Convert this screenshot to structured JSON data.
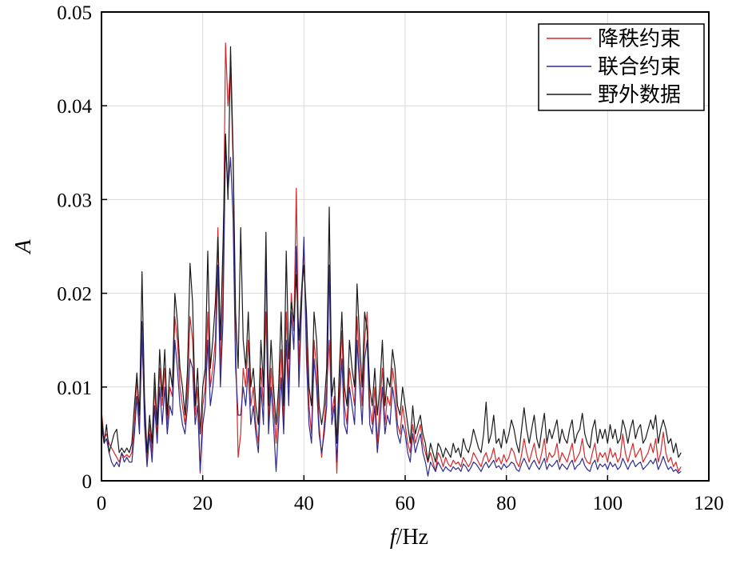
{
  "chart_data": {
    "type": "line",
    "xlabel_italic": "f",
    "xlabel_unit": "/Hz",
    "ylabel": "A",
    "xlim": [
      0,
      120
    ],
    "ylim": [
      0,
      0.05
    ],
    "xticks": [
      0,
      20,
      40,
      60,
      80,
      100,
      120
    ],
    "yticks": [
      0,
      0.01,
      0.02,
      0.03,
      0.04,
      0.05
    ],
    "xtick_labels": [
      "0",
      "20",
      "40",
      "60",
      "80",
      "100",
      "120"
    ],
    "ytick_labels": [
      "0",
      "0.01",
      "0.02",
      "0.03",
      "0.04",
      "0.05"
    ],
    "grid": true,
    "legend_position": "top-right",
    "x_step": 0.5,
    "series": [
      {
        "name": "降秩约束",
        "color": "#d62728",
        "values": [
          0.0075,
          0.0045,
          0.005,
          0.004,
          0.0035,
          0.003,
          0.0025,
          0.002,
          0.003,
          0.0025,
          0.0028,
          0.0025,
          0.003,
          0.006,
          0.011,
          0.006,
          0.015,
          0.008,
          0.002,
          0.006,
          0.003,
          0.01,
          0.005,
          0.012,
          0.008,
          0.012,
          0.006,
          0.01,
          0.009,
          0.0175,
          0.015,
          0.01,
          0.008,
          0.006,
          0.01,
          0.0175,
          0.015,
          0.007,
          0.01,
          0.0008,
          0.008,
          0.01,
          0.018,
          0.01,
          0.012,
          0.015,
          0.027,
          0.012,
          0.02,
          0.0467,
          0.04,
          0.044,
          0.034,
          0.015,
          0.0025,
          0.005,
          0.012,
          0.01,
          0.015,
          0.008,
          0.01,
          0.006,
          0.004,
          0.012,
          0.008,
          0.018,
          0.006,
          0.012,
          0.008,
          0.004,
          0.008,
          0.014,
          0.006,
          0.018,
          0.01,
          0.02,
          0.016,
          0.0312,
          0.012,
          0.02,
          0.025,
          0.015,
          0.008,
          0.005,
          0.015,
          0.012,
          0.006,
          0.0025,
          0.006,
          0.01,
          0.015,
          0.007,
          0.009,
          0.0008,
          0.01,
          0.016,
          0.008,
          0.006,
          0.012,
          0.01,
          0.008,
          0.0175,
          0.012,
          0.008,
          0.015,
          0.018,
          0.008,
          0.006,
          0.01,
          0.004,
          0.008,
          0.012,
          0.006,
          0.009,
          0.008,
          0.012,
          0.01,
          0.006,
          0.005,
          0.008,
          0.006,
          0.004,
          0.003,
          0.006,
          0.004,
          0.005,
          0.006,
          0.004,
          0.003,
          0.002,
          0.003,
          0.002,
          0.001,
          0.003,
          0.0025,
          0.0015,
          0.0025,
          0.0018,
          0.0015,
          0.0022,
          0.0018,
          0.002,
          0.0015,
          0.0025,
          0.002,
          0.0015,
          0.002,
          0.003,
          0.0025,
          0.002,
          0.0015,
          0.0025,
          0.003,
          0.002,
          0.0025,
          0.0035,
          0.002,
          0.0025,
          0.0018,
          0.0028,
          0.002,
          0.0025,
          0.0035,
          0.003,
          0.002,
          0.0015,
          0.0028,
          0.0045,
          0.003,
          0.002,
          0.003,
          0.004,
          0.0025,
          0.0018,
          0.003,
          0.0045,
          0.002,
          0.003,
          0.0025,
          0.0028,
          0.004,
          0.002,
          0.003,
          0.0025,
          0.002,
          0.003,
          0.004,
          0.002,
          0.0025,
          0.003,
          0.0045,
          0.0025,
          0.002,
          0.0018,
          0.003,
          0.004,
          0.002,
          0.003,
          0.0025,
          0.003,
          0.002,
          0.0035,
          0.0025,
          0.003,
          0.002,
          0.0025,
          0.005,
          0.003,
          0.002,
          0.003,
          0.004,
          0.0025,
          0.003,
          0.0035,
          0.002,
          0.0025,
          0.003,
          0.004,
          0.003,
          0.0045,
          0.002,
          0.003,
          0.0052,
          0.003,
          0.002,
          0.0025,
          0.0015,
          0.002,
          0.001,
          0.0015
        ]
      },
      {
        "name": "联合约束",
        "color": "#2e2a8f",
        "values": [
          0.006,
          0.004,
          0.0045,
          0.003,
          0.002,
          0.0015,
          0.002,
          0.0015,
          0.003,
          0.002,
          0.0025,
          0.002,
          0.002,
          0.005,
          0.009,
          0.005,
          0.017,
          0.006,
          0.0015,
          0.005,
          0.002,
          0.008,
          0.004,
          0.01,
          0.006,
          0.01,
          0.005,
          0.008,
          0.007,
          0.015,
          0.012,
          0.008,
          0.006,
          0.005,
          0.008,
          0.013,
          0.012,
          0.006,
          0.008,
          0.001,
          0.006,
          0.008,
          0.015,
          0.008,
          0.01,
          0.013,
          0.023,
          0.01,
          0.017,
          0.036,
          0.031,
          0.0345,
          0.028,
          0.012,
          0.007,
          0.007,
          0.01,
          0.008,
          0.012,
          0.006,
          0.008,
          0.005,
          0.003,
          0.01,
          0.006,
          0.025,
          0.005,
          0.01,
          0.006,
          0.001,
          0.006,
          0.011,
          0.005,
          0.015,
          0.008,
          0.018,
          0.014,
          0.025,
          0.01,
          0.018,
          0.026,
          0.013,
          0.006,
          0.004,
          0.013,
          0.01,
          0.005,
          0.003,
          0.005,
          0.008,
          0.023,
          0.006,
          0.008,
          0.002,
          0.008,
          0.013,
          0.006,
          0.005,
          0.01,
          0.008,
          0.006,
          0.015,
          0.01,
          0.006,
          0.013,
          0.015,
          0.006,
          0.005,
          0.008,
          0.003,
          0.006,
          0.01,
          0.005,
          0.007,
          0.006,
          0.01,
          0.008,
          0.005,
          0.004,
          0.006,
          0.005,
          0.003,
          0.002,
          0.005,
          0.003,
          0.004,
          0.005,
          0.003,
          0.002,
          0.0005,
          0.002,
          0.0015,
          0.001,
          0.002,
          0.0015,
          0.001,
          0.0015,
          0.0012,
          0.001,
          0.0015,
          0.0012,
          0.0014,
          0.001,
          0.0018,
          0.0015,
          0.001,
          0.0014,
          0.002,
          0.0018,
          0.0014,
          0.001,
          0.0016,
          0.002,
          0.0014,
          0.0018,
          0.0022,
          0.0014,
          0.0016,
          0.0012,
          0.0018,
          0.0014,
          0.0016,
          0.002,
          0.0018,
          0.0012,
          0.001,
          0.0018,
          0.0024,
          0.0018,
          0.0012,
          0.0018,
          0.0022,
          0.0016,
          0.0012,
          0.0018,
          0.0024,
          0.0012,
          0.0018,
          0.0015,
          0.0018,
          0.0022,
          0.0012,
          0.0018,
          0.0015,
          0.0012,
          0.0018,
          0.0022,
          0.0012,
          0.0016,
          0.0018,
          0.0024,
          0.0016,
          0.0012,
          0.001,
          0.0018,
          0.0022,
          0.0012,
          0.0018,
          0.0015,
          0.0018,
          0.0012,
          0.002,
          0.0015,
          0.0018,
          0.0012,
          0.0015,
          0.0024,
          0.0018,
          0.0012,
          0.0018,
          0.0022,
          0.0015,
          0.0018,
          0.002,
          0.0012,
          0.0015,
          0.0018,
          0.0022,
          0.0018,
          0.0024,
          0.0012,
          0.0018,
          0.0026,
          0.0018,
          0.0012,
          0.0015,
          0.001,
          0.0012,
          0.0008,
          0.001
        ]
      },
      {
        "name": "野外数据",
        "color": "#1a1a1a",
        "values": [
          0.007,
          0.004,
          0.006,
          0.003,
          0.004,
          0.005,
          0.0055,
          0.003,
          0.0035,
          0.003,
          0.0035,
          0.003,
          0.004,
          0.008,
          0.0115,
          0.007,
          0.0223,
          0.009,
          0.003,
          0.007,
          0.004,
          0.0115,
          0.006,
          0.014,
          0.009,
          0.014,
          0.007,
          0.012,
          0.01,
          0.02,
          0.017,
          0.012,
          0.01,
          0.007,
          0.012,
          0.0232,
          0.019,
          0.008,
          0.012,
          0.005,
          0.01,
          0.012,
          0.0245,
          0.012,
          0.015,
          0.019,
          0.026,
          0.015,
          0.025,
          0.037,
          0.03,
          0.0463,
          0.035,
          0.018,
          0.012,
          0.027,
          0.015,
          0.012,
          0.018,
          0.01,
          0.012,
          0.008,
          0.006,
          0.015,
          0.01,
          0.0265,
          0.008,
          0.015,
          0.01,
          0.006,
          0.01,
          0.018,
          0.008,
          0.0245,
          0.013,
          0.019,
          0.017,
          0.022,
          0.015,
          0.02,
          0.023,
          0.018,
          0.01,
          0.008,
          0.018,
          0.015,
          0.008,
          0.006,
          0.008,
          0.012,
          0.0292,
          0.009,
          0.011,
          0.004,
          0.012,
          0.018,
          0.01,
          0.008,
          0.015,
          0.012,
          0.01,
          0.021,
          0.015,
          0.01,
          0.018,
          0.016,
          0.01,
          0.008,
          0.012,
          0.007,
          0.01,
          0.015,
          0.008,
          0.011,
          0.01,
          0.014,
          0.012,
          0.008,
          0.007,
          0.01,
          0.008,
          0.006,
          0.004,
          0.008,
          0.005,
          0.006,
          0.007,
          0.005,
          0.004,
          0.002,
          0.004,
          0.003,
          0.002,
          0.004,
          0.0035,
          0.0025,
          0.0035,
          0.003,
          0.0025,
          0.004,
          0.003,
          0.0035,
          0.0025,
          0.0045,
          0.0035,
          0.003,
          0.004,
          0.0055,
          0.0045,
          0.0035,
          0.003,
          0.005,
          0.0084,
          0.004,
          0.005,
          0.007,
          0.004,
          0.0045,
          0.0035,
          0.0055,
          0.004,
          0.005,
          0.0065,
          0.0055,
          0.004,
          0.003,
          0.0055,
          0.0078,
          0.0055,
          0.004,
          0.0055,
          0.007,
          0.0045,
          0.0035,
          0.0055,
          0.0072,
          0.004,
          0.0055,
          0.0045,
          0.0055,
          0.0065,
          0.004,
          0.0055,
          0.0045,
          0.004,
          0.0055,
          0.0065,
          0.004,
          0.005,
          0.0055,
          0.0072,
          0.005,
          0.004,
          0.0035,
          0.0055,
          0.0065,
          0.004,
          0.0055,
          0.0045,
          0.0055,
          0.004,
          0.006,
          0.0045,
          0.0055,
          0.004,
          0.0045,
          0.0065,
          0.0055,
          0.004,
          0.0055,
          0.0065,
          0.0045,
          0.0055,
          0.006,
          0.004,
          0.0045,
          0.0055,
          0.0065,
          0.0055,
          0.007,
          0.004,
          0.0055,
          0.0065,
          0.0055,
          0.004,
          0.0045,
          0.003,
          0.004,
          0.0025,
          0.003
        ]
      }
    ]
  }
}
